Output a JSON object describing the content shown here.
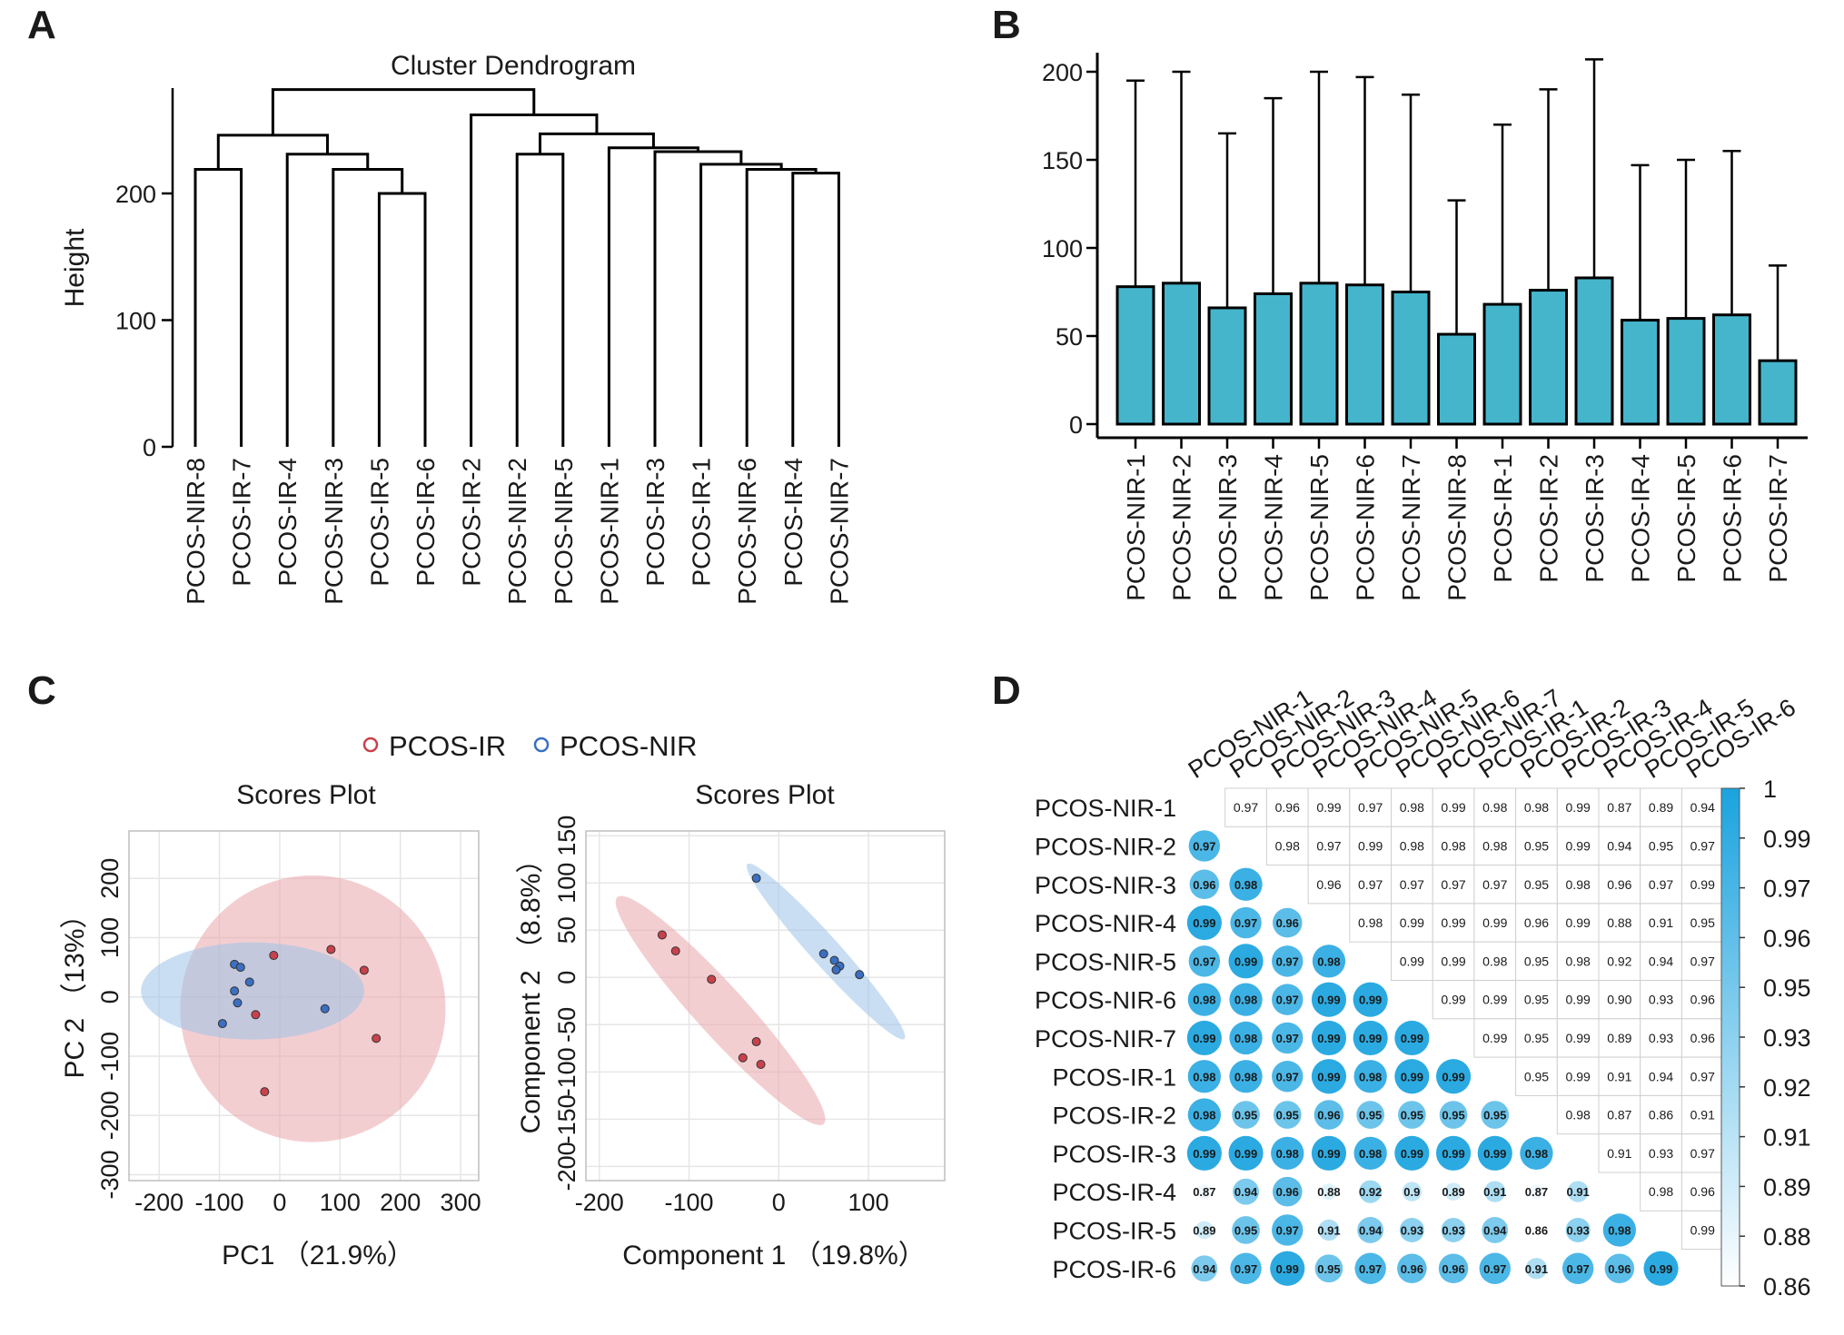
{
  "panel_labels": [
    "A",
    "B",
    "C",
    "D"
  ],
  "colors": {
    "ir": "#c8414b",
    "nir": "#3a6fc2",
    "ir_fill": "#e9a5ab",
    "nir_fill": "#9cc3e8",
    "box": "#45b5cc",
    "corr_high": "#1aa3df",
    "corr_low": "#ffffff",
    "axis": "#000000"
  },
  "chart_data": [
    {
      "id": "A",
      "type": "dendrogram",
      "title": "Cluster Dendrogram",
      "ylabel": "Height",
      "ylim": [
        0,
        280
      ],
      "yticks": [
        0,
        100,
        200
      ],
      "leaves": [
        "PCOS-NIR-8",
        "PCOS-IR-7",
        "PCOS-IR-4",
        "PCOS-NIR-3",
        "PCOS-IR-5",
        "PCOS-IR-6",
        "PCOS-IR-2",
        "PCOS-NIR-2",
        "PCOS-NIR-5",
        "PCOS-NIR-1",
        "PCOS-IR-3",
        "PCOS-IR-1",
        "PCOS-NIR-6",
        "PCOS-IR-4",
        "PCOS-NIR-7"
      ],
      "merges": [
        {
          "left": -1,
          "right": -2,
          "height": 219
        },
        {
          "left": -5,
          "right": -6,
          "height": 200
        },
        {
          "left": -4,
          "right": 2,
          "height": 219
        },
        {
          "left": -3,
          "right": 3,
          "height": 231
        },
        {
          "left": 1,
          "right": 4,
          "height": 246
        },
        {
          "left": -14,
          "right": -15,
          "height": 216
        },
        {
          "left": -13,
          "right": 6,
          "height": 219
        },
        {
          "left": -12,
          "right": 7,
          "height": 223
        },
        {
          "left": -11,
          "right": 8,
          "height": 233
        },
        {
          "left": -10,
          "right": 9,
          "height": 236
        },
        {
          "left": -8,
          "right": -9,
          "height": 231
        },
        {
          "left": 11,
          "right": 10,
          "height": 247
        },
        {
          "left": -7,
          "right": 12,
          "height": 262
        },
        {
          "left": 5,
          "right": 13,
          "height": 282
        }
      ]
    },
    {
      "id": "B",
      "type": "bar",
      "categories": [
        "PCOS-NIR-1",
        "PCOS-NIR-2",
        "PCOS-NIR-3",
        "PCOS-NIR-4",
        "PCOS-NIR-5",
        "PCOS-NIR-6",
        "PCOS-NIR-7",
        "PCOS-NIR-8",
        "PCOS-IR-1",
        "PCOS-IR-2",
        "PCOS-IR-3",
        "PCOS-IR-4",
        "PCOS-IR-5",
        "PCOS-IR-6",
        "PCOS-IR-7"
      ],
      "values": [
        78,
        80,
        66,
        74,
        80,
        79,
        75,
        51,
        68,
        76,
        83,
        59,
        60,
        62,
        36
      ],
      "whisker_max": [
        195,
        200,
        165,
        185,
        200,
        197,
        187,
        127,
        170,
        190,
        207,
        147,
        150,
        155,
        90
      ],
      "ylim": [
        0,
        215
      ],
      "yticks": [
        0,
        50,
        100,
        150,
        200
      ]
    },
    {
      "id": "C1",
      "type": "scatter",
      "title": "Scores Plot",
      "xlabel": "PC1 （21.9%）",
      "ylabel": "PC 2 （13%）",
      "xlim": [
        -250,
        330
      ],
      "ylim": [
        -310,
        280
      ],
      "xticks": [
        -200,
        -100,
        0,
        100,
        200,
        300
      ],
      "yticks": [
        -300,
        -200,
        -100,
        0,
        100,
        200
      ],
      "legend": [
        "PCOS-IR",
        "PCOS-NIR"
      ],
      "legend_position": "top",
      "series": [
        {
          "name": "PCOS-IR",
          "points": [
            [
              -10,
              70
            ],
            [
              85,
              80
            ],
            [
              140,
              45
            ],
            [
              160,
              -70
            ],
            [
              -40,
              -30
            ],
            [
              -25,
              -160
            ]
          ]
        },
        {
          "name": "PCOS-NIR",
          "points": [
            [
              -75,
              55
            ],
            [
              -65,
              50
            ],
            [
              -50,
              25
            ],
            [
              -75,
              10
            ],
            [
              -70,
              -10
            ],
            [
              -95,
              -45
            ],
            [
              75,
              -20
            ]
          ]
        }
      ],
      "ellipses": [
        {
          "series": "PCOS-IR",
          "cx": 55,
          "cy": -20,
          "rx": 220,
          "ry": 225,
          "angle": 0
        },
        {
          "series": "PCOS-NIR",
          "cx": -45,
          "cy": 10,
          "rx": 185,
          "ry": 82,
          "angle": 0
        }
      ]
    },
    {
      "id": "C2",
      "type": "scatter",
      "title": "Scores Plot",
      "xlabel": "Component 1 （19.8%）",
      "ylabel": "Component 2 （8.8%）",
      "xlim": [
        -215,
        185
      ],
      "ylim": [
        -215,
        155
      ],
      "xticks": [
        -200,
        -100,
        0,
        100
      ],
      "yticks": [
        -200,
        -150,
        -100,
        -50,
        0,
        50,
        100,
        150
      ],
      "series": [
        {
          "name": "PCOS-IR",
          "points": [
            [
              -130,
              45
            ],
            [
              -115,
              28
            ],
            [
              -75,
              -2
            ],
            [
              -25,
              -68
            ],
            [
              -40,
              -85
            ],
            [
              -20,
              -92
            ]
          ]
        },
        {
          "name": "PCOS-NIR",
          "points": [
            [
              -25,
              105
            ],
            [
              50,
              25
            ],
            [
              62,
              18
            ],
            [
              68,
              12
            ],
            [
              64,
              8
            ],
            [
              90,
              3
            ]
          ]
        }
      ],
      "ellipses": [
        {
          "series": "PCOS-IR",
          "x1": -180,
          "y1": 85,
          "x2": 50,
          "y2": -155,
          "width": 55
        },
        {
          "series": "PCOS-NIR",
          "x1": -35,
          "y1": 120,
          "x2": 140,
          "y2": -65,
          "width": 32
        }
      ]
    },
    {
      "id": "D",
      "type": "heatmap",
      "labels": [
        "PCOS-NIR-1",
        "PCOS-NIR-2",
        "PCOS-NIR-3",
        "PCOS-NIR-4",
        "PCOS-NIR-5",
        "PCOS-NIR-6",
        "PCOS-NIR-7",
        "PCOS-IR-1",
        "PCOS-IR-2",
        "PCOS-IR-3",
        "PCOS-IR-4",
        "PCOS-IR-5",
        "PCOS-IR-6"
      ],
      "col_labels": [
        "PCOS-NIR-1",
        "PCOS-NIR-2",
        "PCOS-NIR-3",
        "PCOS-NIR-4",
        "PCOS-NIR-5",
        "PCOS-NIR-6",
        "PCOS-NIR-7",
        "PCOS-IR-1",
        "PCOS-IR-2",
        "PCOS-IR-3",
        "PCOS-IR-4",
        "PCOS-IR-5",
        "PCOS-IR-6"
      ],
      "matrix": [
        [
          null,
          0.97,
          0.96,
          0.99,
          0.97,
          0.98,
          0.99,
          0.98,
          0.98,
          0.99,
          0.87,
          0.89,
          0.94
        ],
        [
          0.97,
          null,
          0.98,
          0.97,
          0.99,
          0.98,
          0.98,
          0.98,
          0.95,
          0.99,
          0.94,
          0.95,
          0.97
        ],
        [
          0.96,
          0.98,
          null,
          0.96,
          0.97,
          0.97,
          0.97,
          0.97,
          0.95,
          0.98,
          0.96,
          0.97,
          0.99
        ],
        [
          0.99,
          0.97,
          0.96,
          null,
          0.98,
          0.99,
          0.99,
          0.99,
          0.96,
          0.99,
          0.88,
          0.91,
          0.95
        ],
        [
          0.97,
          0.99,
          0.97,
          0.98,
          null,
          0.99,
          0.99,
          0.98,
          0.95,
          0.98,
          0.92,
          0.94,
          0.97
        ],
        [
          0.98,
          0.98,
          0.97,
          0.99,
          0.99,
          null,
          0.99,
          0.99,
          0.95,
          0.99,
          0.9,
          0.93,
          0.96
        ],
        [
          0.99,
          0.98,
          0.97,
          0.99,
          0.99,
          0.99,
          null,
          0.99,
          0.95,
          0.99,
          0.89,
          0.93,
          0.96
        ],
        [
          0.98,
          0.98,
          0.97,
          0.99,
          0.98,
          0.99,
          0.99,
          null,
          0.95,
          0.99,
          0.91,
          0.94,
          0.97
        ],
        [
          0.98,
          0.95,
          0.95,
          0.96,
          0.95,
          0.95,
          0.95,
          0.95,
          null,
          0.98,
          0.87,
          0.86,
          0.91
        ],
        [
          0.99,
          0.99,
          0.98,
          0.99,
          0.98,
          0.99,
          0.99,
          0.99,
          0.98,
          null,
          0.91,
          0.93,
          0.97
        ],
        [
          0.87,
          0.94,
          0.96,
          0.88,
          0.92,
          0.9,
          0.89,
          0.91,
          0.87,
          0.91,
          null,
          0.98,
          0.96
        ],
        [
          0.89,
          0.95,
          0.97,
          0.91,
          0.94,
          0.93,
          0.93,
          0.94,
          0.86,
          0.93,
          0.98,
          null,
          0.99
        ],
        [
          0.94,
          0.97,
          0.99,
          0.95,
          0.97,
          0.96,
          0.96,
          0.97,
          0.91,
          0.97,
          0.96,
          0.99,
          null
        ]
      ],
      "display_labels": [
        [
          null,
          "0.97",
          "0.96",
          "0.99",
          "0.97",
          "0.98",
          "0.99",
          "0.98",
          "0.98",
          "0.99",
          "0.87",
          "0.89",
          "0.94"
        ],
        [
          "0.97",
          null,
          "0.98",
          "0.97",
          "0.99",
          "0.98",
          "0.98",
          "0.98",
          "0.95",
          "0.99",
          "0.94",
          "0.95",
          "0.97"
        ],
        [
          "0.96",
          "0.98",
          null,
          "0.96",
          "0.97",
          "0.97",
          "0.97",
          "0.97",
          "0.95",
          "0.98",
          "0.96",
          "0.97",
          "0.99"
        ],
        [
          "0.99",
          "0.97",
          "0.96",
          null,
          "0.98",
          "0.99",
          "0.99",
          "0.99",
          "0.96",
          "0.99",
          "0.88",
          "0.91",
          "0.95"
        ],
        [
          "0.97",
          "0.99",
          "0.97",
          "0.98",
          null,
          "0.99",
          "0.99",
          "0.98",
          "0.95",
          "0.98",
          "0.92",
          "0.94",
          "0.97"
        ],
        [
          "0.98",
          "0.98",
          "0.97",
          "0.99",
          "0.99",
          null,
          "0.99",
          "0.99",
          "0.95",
          "0.99",
          "0.90",
          "0.93",
          "0.96"
        ],
        [
          "0.99",
          "0.98",
          "0.97",
          "0.99",
          "0.99",
          "0.99",
          null,
          "0.99",
          "0.95",
          "0.99",
          "0.89",
          "0.93",
          "0.96"
        ],
        [
          "0.98",
          "0.98",
          "0.97",
          "0.99",
          "0.98",
          "0.99",
          "0.99",
          null,
          "0.95",
          "0.99",
          "0.91",
          "0.94",
          "0.97"
        ],
        [
          "0.98",
          "0.95",
          "0.95",
          "0.96",
          "0.95",
          "0.95",
          "0.95",
          "0.95",
          null,
          "0.98",
          "0.87",
          "0.86",
          "0.91"
        ],
        [
          "0.99",
          "0.99",
          "0.98",
          "0.99",
          "0.98",
          "0.99",
          "0.99",
          "0.99",
          "0.98",
          null,
          "0.91",
          "0.93",
          "0.97"
        ],
        [
          "0.87",
          "0.94",
          "0.96",
          "0.88",
          "0.92",
          "0.9",
          "0.89",
          "0.91",
          "0.87",
          "0.91",
          null,
          "0.98",
          "0.96"
        ],
        [
          "0.89",
          "0.95",
          "0.97",
          "0.91",
          "0.94",
          "0.93",
          "0.93",
          "0.94",
          "0.86",
          "0.93",
          "0.98",
          null,
          "0.99"
        ],
        [
          "0.94",
          "0.97",
          "0.99",
          "0.95",
          "0.97",
          "0.96",
          "0.96",
          "0.97",
          "0.91",
          "0.97",
          "0.96",
          "0.99",
          null
        ]
      ],
      "colorbar_range": [
        0.86,
        1
      ],
      "colorbar_ticks": [
        "1",
        "0.99",
        "0.97",
        "0.96",
        "0.95",
        "0.93",
        "0.92",
        "0.91",
        "0.89",
        "0.88",
        "0.86"
      ],
      "lower_triangle": "circles",
      "upper_triangle": "numbers"
    }
  ]
}
